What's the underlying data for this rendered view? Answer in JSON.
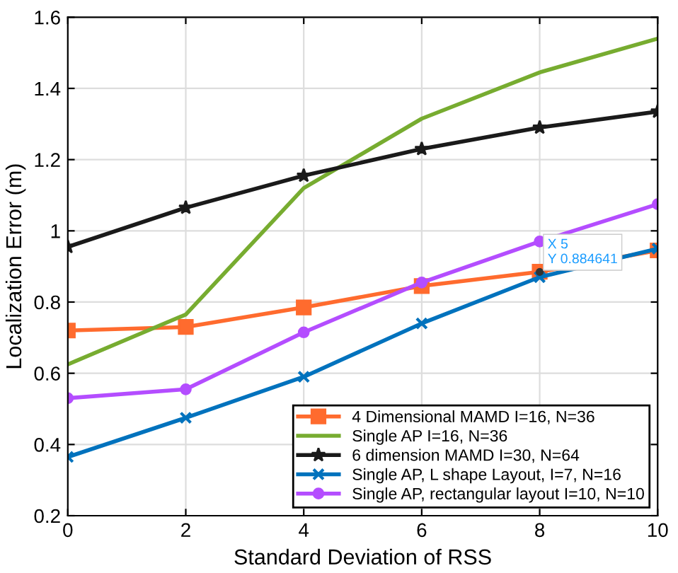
{
  "chart_data": {
    "type": "line",
    "xlabel": "Standard Deviation of RSS",
    "ylabel": "Localization Error (m)",
    "x": [
      0,
      2,
      4,
      6,
      8,
      10
    ],
    "series": [
      {
        "name": "4 Dimensional MAMD I=16, N=36",
        "color": "#ff6b2e",
        "marker": "square",
        "values": [
          0.72,
          0.73,
          0.785,
          0.845,
          0.885,
          0.945
        ]
      },
      {
        "name": "Single AP I=16, N=36",
        "color": "#77ac30",
        "marker": "none",
        "values": [
          0.625,
          0.765,
          1.12,
          1.315,
          1.445,
          1.54
        ]
      },
      {
        "name": "6 dimension MAMD I=30, N=64",
        "color": "#1a1a1a",
        "marker": "star",
        "values": [
          0.955,
          1.065,
          1.155,
          1.23,
          1.29,
          1.335
        ]
      },
      {
        "name": "Single AP, L shape Layout, I=7, N=16",
        "color": "#0072bd",
        "marker": "cross",
        "values": [
          0.365,
          0.475,
          0.59,
          0.74,
          0.87,
          0.95
        ]
      },
      {
        "name": "Single AP, rectangular layout I=10, N=10",
        "color": "#b44dff",
        "marker": "circle",
        "values": [
          0.53,
          0.555,
          0.715,
          0.855,
          0.97,
          1.075
        ]
      }
    ],
    "annotations": [
      {
        "text": "X 5\nY 0.884641",
        "x": 8,
        "y": 0.884641
      }
    ],
    "xlim": [
      0,
      10
    ],
    "xticks": [
      0,
      2,
      4,
      6,
      8,
      10
    ],
    "ylim": [
      0.2,
      1.6
    ],
    "yticks": [
      {
        "value": 0.2,
        "label": "0.2"
      },
      {
        "value": 0.4,
        "label": "0.4"
      },
      {
        "value": 0.6,
        "label": "0.6"
      },
      {
        "value": 0.8,
        "label": "0.8"
      },
      {
        "value": 1,
        "label": "1"
      },
      {
        "value": 1.2,
        "label": "1.2"
      },
      {
        "value": 1.4,
        "label": "1.4"
      },
      {
        "value": 1.6,
        "label": "1.6"
      }
    ],
    "grid": true,
    "legend": "bottom right",
    "line_style": "solid"
  }
}
